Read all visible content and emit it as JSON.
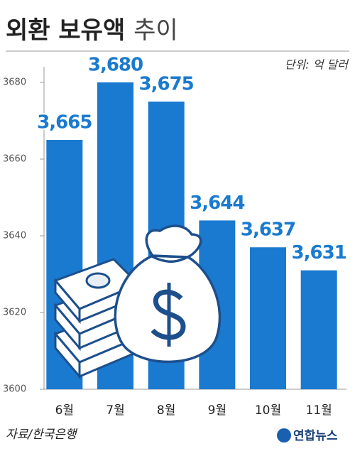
{
  "chart_data": {
    "type": "bar",
    "title": [
      "외환 보유액",
      "추이"
    ],
    "unit_label": "단위: 억 달러",
    "categories": [
      "6월",
      "7월",
      "8월",
      "9월",
      "10월",
      "11월"
    ],
    "values": [
      3665,
      3680,
      3675,
      3644,
      3637,
      3631
    ],
    "value_labels": [
      "3,665",
      "3,680",
      "3,675",
      "3,644",
      "3,637",
      "3,631"
    ],
    "color": "#1a7ad0",
    "ylim": [
      3600,
      3684
    ],
    "yticks": [
      3600,
      3620,
      3640,
      3660,
      3680
    ],
    "grid": false,
    "source": "자료/한국은행",
    "credit": "연합뉴스"
  }
}
